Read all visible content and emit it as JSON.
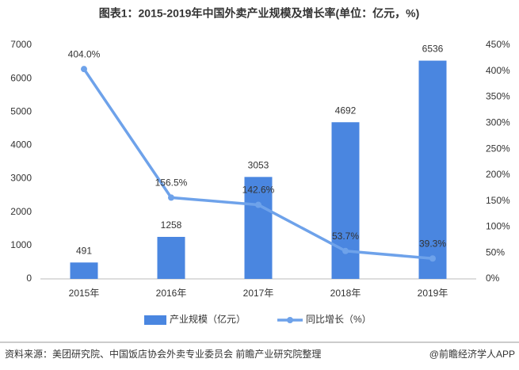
{
  "chart_data": {
    "type": "bar",
    "title": "图表1：2015-2019年中国外卖产业规模及增长率(单位：亿元，%)",
    "categories": [
      "2015年",
      "2016年",
      "2017年",
      "2018年",
      "2019年"
    ],
    "series": [
      {
        "name": "产业规模（亿元）",
        "type": "bar",
        "color": "#4a86e0",
        "values": [
          491,
          1258,
          3053,
          4692,
          6536
        ]
      },
      {
        "name": "同比增长（%）",
        "type": "line",
        "axis": "y2",
        "color": "#6ea2ea",
        "values": [
          404.0,
          156.5,
          142.6,
          53.7,
          39.3
        ],
        "value_labels": [
          "404.0%",
          "156.5%",
          "142.6%",
          "53.7%",
          "39.3%"
        ]
      }
    ],
    "ylim": [
      0,
      7000
    ],
    "yticks": [
      0,
      1000,
      2000,
      3000,
      4000,
      5000,
      6000,
      7000
    ],
    "y2lim": [
      0,
      450
    ],
    "y2ticks": [
      {
        "value": 0,
        "label": "0%"
      },
      {
        "value": 50,
        "label": "50%"
      },
      {
        "value": 100,
        "label": "100%"
      },
      {
        "value": 150,
        "label": "150%"
      },
      {
        "value": 200,
        "label": "200%"
      },
      {
        "value": 250,
        "label": "250%"
      },
      {
        "value": 300,
        "label": "300%"
      },
      {
        "value": 350,
        "label": "350%"
      },
      {
        "value": 400,
        "label": "400%"
      },
      {
        "value": 450,
        "label": "450%"
      }
    ],
    "grid": false,
    "legend": "bottom",
    "source": "资料来源：美团研究院、中国饭店协会外卖专业委员会 前瞻产业研究院整理",
    "brand": "@前瞻经济学人APP"
  }
}
